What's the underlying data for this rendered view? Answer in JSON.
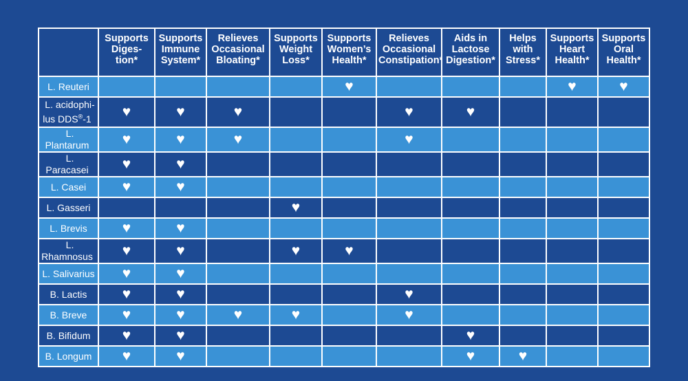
{
  "benefit_headers": [
    "Supports\nDiges-\ntion*",
    "Supports\nImmune\nSystem*",
    "Relieves\nOccasional\nBloating*",
    "Supports\nWeight\nLoss*",
    "Supports\nWomen’s\nHealth*",
    "Relieves\nOccasional\nConstipation*",
    "Aids in\nLactose\nDigestion*",
    "Helps\nwith\nStress*",
    "Supports\nHeart\nHealth*",
    "Supports\nOral\nHealth*"
  ],
  "heart_symbol": "♥",
  "strains": [
    {
      "name": "L. Reuteri",
      "benefits": [
        0,
        0,
        0,
        0,
        1,
        0,
        0,
        0,
        1,
        1
      ]
    },
    {
      "name": "L. acidophi-\nlus DDS®-1",
      "benefits": [
        1,
        1,
        1,
        0,
        0,
        1,
        1,
        0,
        0,
        0
      ]
    },
    {
      "name": "L. Plantarum",
      "benefits": [
        1,
        1,
        1,
        0,
        0,
        1,
        0,
        0,
        0,
        0
      ]
    },
    {
      "name": "L. Paracasei",
      "benefits": [
        1,
        1,
        0,
        0,
        0,
        0,
        0,
        0,
        0,
        0
      ]
    },
    {
      "name": "L. Casei",
      "benefits": [
        1,
        1,
        0,
        0,
        0,
        0,
        0,
        0,
        0,
        0
      ]
    },
    {
      "name": "L. Gasseri",
      "benefits": [
        0,
        0,
        0,
        1,
        0,
        0,
        0,
        0,
        0,
        0
      ]
    },
    {
      "name": "L. Brevis",
      "benefits": [
        1,
        1,
        0,
        0,
        0,
        0,
        0,
        0,
        0,
        0
      ]
    },
    {
      "name": "L. Rhamnosus",
      "benefits": [
        1,
        1,
        0,
        1,
        1,
        0,
        0,
        0,
        0,
        0
      ]
    },
    {
      "name": "L. Salivarius",
      "benefits": [
        1,
        1,
        0,
        0,
        0,
        0,
        0,
        0,
        0,
        0
      ]
    },
    {
      "name": "B. Lactis",
      "benefits": [
        1,
        1,
        0,
        0,
        0,
        1,
        0,
        0,
        0,
        0
      ]
    },
    {
      "name": "B. Breve",
      "benefits": [
        1,
        1,
        1,
        1,
        0,
        1,
        0,
        0,
        0,
        0
      ]
    },
    {
      "name": "B. Bifidum",
      "benefits": [
        1,
        1,
        0,
        0,
        0,
        0,
        1,
        0,
        0,
        0
      ]
    },
    {
      "name": "B. Longum",
      "benefits": [
        1,
        1,
        0,
        0,
        0,
        0,
        1,
        1,
        0,
        0
      ]
    }
  ],
  "colors": {
    "background": "#1d4a93",
    "row_light": "#3a92d6",
    "row_dark": "#1d4a93",
    "grid_lines": "#ffffff",
    "text": "#ffffff"
  }
}
